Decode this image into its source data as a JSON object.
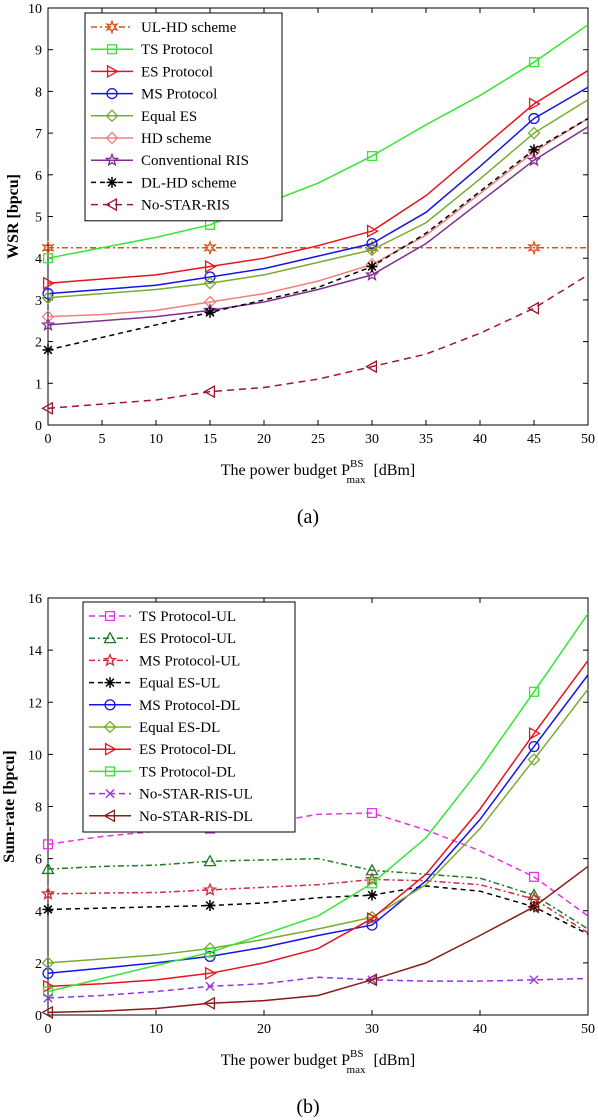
{
  "chart_data": [
    {
      "type": "line",
      "caption": "(a)",
      "xlabel_main": "The power budget P",
      "xlabel_sup": "BS",
      "xlabel_sub": "max",
      "xlabel_unit": "[dBm]",
      "ylabel": "WSR [bpcu]",
      "xlim": [
        0,
        50
      ],
      "ylim": [
        0,
        10
      ],
      "xticks": [
        "0",
        "5",
        "10",
        "15",
        "20",
        "25",
        "30",
        "35",
        "40",
        "45",
        "50"
      ],
      "yticks": [
        "0",
        "1",
        "2",
        "3",
        "4",
        "5",
        "6",
        "7",
        "8",
        "9",
        "10"
      ],
      "legend_position": "top-left",
      "grid": true,
      "x": [
        0,
        5,
        10,
        15,
        20,
        25,
        30,
        35,
        40,
        45,
        50
      ],
      "marker_x": [
        0,
        15,
        30,
        45
      ],
      "series": [
        {
          "name": "UL-HD scheme",
          "color": "#D95319",
          "dash": "6,3,2,3",
          "marker": "hexagram",
          "values": [
            4.25,
            4.25,
            4.25,
            4.25,
            4.25,
            4.25,
            4.25,
            4.25,
            4.25,
            4.25,
            4.25
          ]
        },
        {
          "name": "TS Protocol",
          "color": "#33E633",
          "dash": "",
          "marker": "square",
          "values": [
            4.0,
            4.25,
            4.5,
            4.8,
            5.3,
            5.8,
            6.45,
            7.2,
            7.9,
            8.7,
            9.6
          ]
        },
        {
          "name": "ES Protocol",
          "color": "#E6141E",
          "dash": "",
          "marker": "triangle-right",
          "values": [
            3.4,
            3.5,
            3.6,
            3.8,
            4.0,
            4.3,
            4.65,
            5.5,
            6.6,
            7.7,
            8.5
          ]
        },
        {
          "name": "MS Protocol",
          "color": "#1414E6",
          "dash": "",
          "marker": "circle",
          "values": [
            3.15,
            3.25,
            3.35,
            3.55,
            3.75,
            4.05,
            4.35,
            5.1,
            6.2,
            7.35,
            8.1
          ]
        },
        {
          "name": "Equal ES",
          "color": "#77AC30",
          "dash": "",
          "marker": "diamond",
          "values": [
            3.05,
            3.15,
            3.25,
            3.4,
            3.6,
            3.9,
            4.2,
            4.85,
            5.9,
            7.0,
            7.8
          ]
        },
        {
          "name": "HD scheme",
          "color": "#F08080",
          "dash": "",
          "marker": "diamond",
          "values": [
            2.6,
            2.65,
            2.75,
            2.95,
            3.15,
            3.45,
            3.85,
            4.55,
            5.55,
            6.55,
            7.35
          ]
        },
        {
          "name": "Conventional RIS",
          "color": "#7E2F8E",
          "dash": "",
          "marker": "pentagram",
          "values": [
            2.4,
            2.5,
            2.6,
            2.75,
            2.95,
            3.25,
            3.6,
            4.35,
            5.35,
            6.35,
            7.15
          ]
        },
        {
          "name": "DL-HD scheme",
          "color": "#000000",
          "dash": "5,4",
          "marker": "asterisk",
          "values": [
            1.8,
            2.1,
            2.4,
            2.7,
            3.0,
            3.3,
            3.8,
            4.6,
            5.6,
            6.6,
            7.35
          ]
        },
        {
          "name": "No-STAR-RIS",
          "color": "#A2142F",
          "dash": "7,5",
          "marker": "triangle-left",
          "values": [
            0.4,
            0.5,
            0.6,
            0.8,
            0.9,
            1.1,
            1.4,
            1.7,
            2.2,
            2.8,
            3.6
          ]
        }
      ]
    },
    {
      "type": "line",
      "caption": "(b)",
      "xlabel_main": "The power budget P",
      "xlabel_sup": "BS",
      "xlabel_sub": "max",
      "xlabel_unit": "[dBm]",
      "ylabel": "Sum-rate [bpcu]",
      "xlim": [
        0,
        50
      ],
      "ylim": [
        0,
        16
      ],
      "xticks": [
        "0",
        "10",
        "20",
        "30",
        "40",
        "50"
      ],
      "xtick_values": [
        0,
        10,
        20,
        30,
        40,
        50
      ],
      "yticks": [
        "0",
        "2",
        "4",
        "6",
        "8",
        "10",
        "12",
        "14",
        "16"
      ],
      "legend_position": "top-left",
      "grid": true,
      "x": [
        0,
        5,
        10,
        15,
        20,
        25,
        30,
        35,
        40,
        45,
        50
      ],
      "marker_x": [
        0,
        15,
        30,
        45
      ],
      "series": [
        {
          "name": "TS Protocol-UL",
          "color": "#E633E6",
          "dash": "6,4",
          "marker": "square",
          "values": [
            6.55,
            6.85,
            7.05,
            7.15,
            7.35,
            7.7,
            7.75,
            7.1,
            6.3,
            5.3,
            3.8
          ]
        },
        {
          "name": "ES Protocol-UL",
          "color": "#1E7A1E",
          "dash": "6,3,2,3",
          "marker": "triangle-up",
          "values": [
            5.6,
            5.7,
            5.75,
            5.9,
            5.95,
            6.0,
            5.55,
            5.4,
            5.25,
            4.6,
            3.3
          ]
        },
        {
          "name": "MS Protocol-UL",
          "color": "#D42A3C",
          "dash": "6,3,2,3",
          "marker": "pentagram",
          "values": [
            4.65,
            4.68,
            4.7,
            4.8,
            4.9,
            5.0,
            5.2,
            5.15,
            5.0,
            4.45,
            3.15
          ]
        },
        {
          "name": "Equal ES-UL",
          "color": "#000000",
          "dash": "5,4",
          "marker": "asterisk",
          "values": [
            4.05,
            4.1,
            4.15,
            4.2,
            4.3,
            4.5,
            4.6,
            4.95,
            4.75,
            4.15,
            3.1
          ]
        },
        {
          "name": "MS Protocol-DL",
          "color": "#1414E6",
          "dash": "",
          "marker": "circle",
          "values": [
            1.6,
            1.8,
            2.0,
            2.25,
            2.6,
            3.05,
            3.45,
            5.15,
            7.5,
            10.3,
            13.05
          ]
        },
        {
          "name": "Equal ES-DL",
          "color": "#77AC30",
          "dash": "",
          "marker": "diamond",
          "values": [
            2.0,
            2.15,
            2.3,
            2.55,
            2.9,
            3.3,
            3.75,
            5.0,
            7.15,
            9.8,
            12.5
          ]
        },
        {
          "name": "ES Protocol-DL",
          "color": "#E6141E",
          "dash": "",
          "marker": "triangle-right",
          "values": [
            1.1,
            1.2,
            1.35,
            1.6,
            2.0,
            2.55,
            3.7,
            5.4,
            7.9,
            10.8,
            13.6
          ]
        },
        {
          "name": "TS Protocol-DL",
          "color": "#33E633",
          "dash": "",
          "marker": "square",
          "values": [
            0.9,
            1.4,
            1.9,
            2.4,
            3.1,
            3.8,
            5.05,
            6.8,
            9.45,
            12.4,
            15.4
          ]
        },
        {
          "name": "No-STAR-RIS-UL",
          "color": "#9933E6",
          "dash": "6,4",
          "marker": "x",
          "values": [
            0.65,
            0.75,
            0.9,
            1.1,
            1.2,
            1.45,
            1.35,
            1.3,
            1.3,
            1.35,
            1.4
          ]
        },
        {
          "name": "No-STAR-RIS-DL",
          "color": "#8B1A1A",
          "dash": "",
          "marker": "triangle-left",
          "values": [
            0.1,
            0.15,
            0.25,
            0.45,
            0.55,
            0.75,
            1.35,
            2.0,
            3.05,
            4.15,
            5.7
          ]
        }
      ]
    }
  ]
}
